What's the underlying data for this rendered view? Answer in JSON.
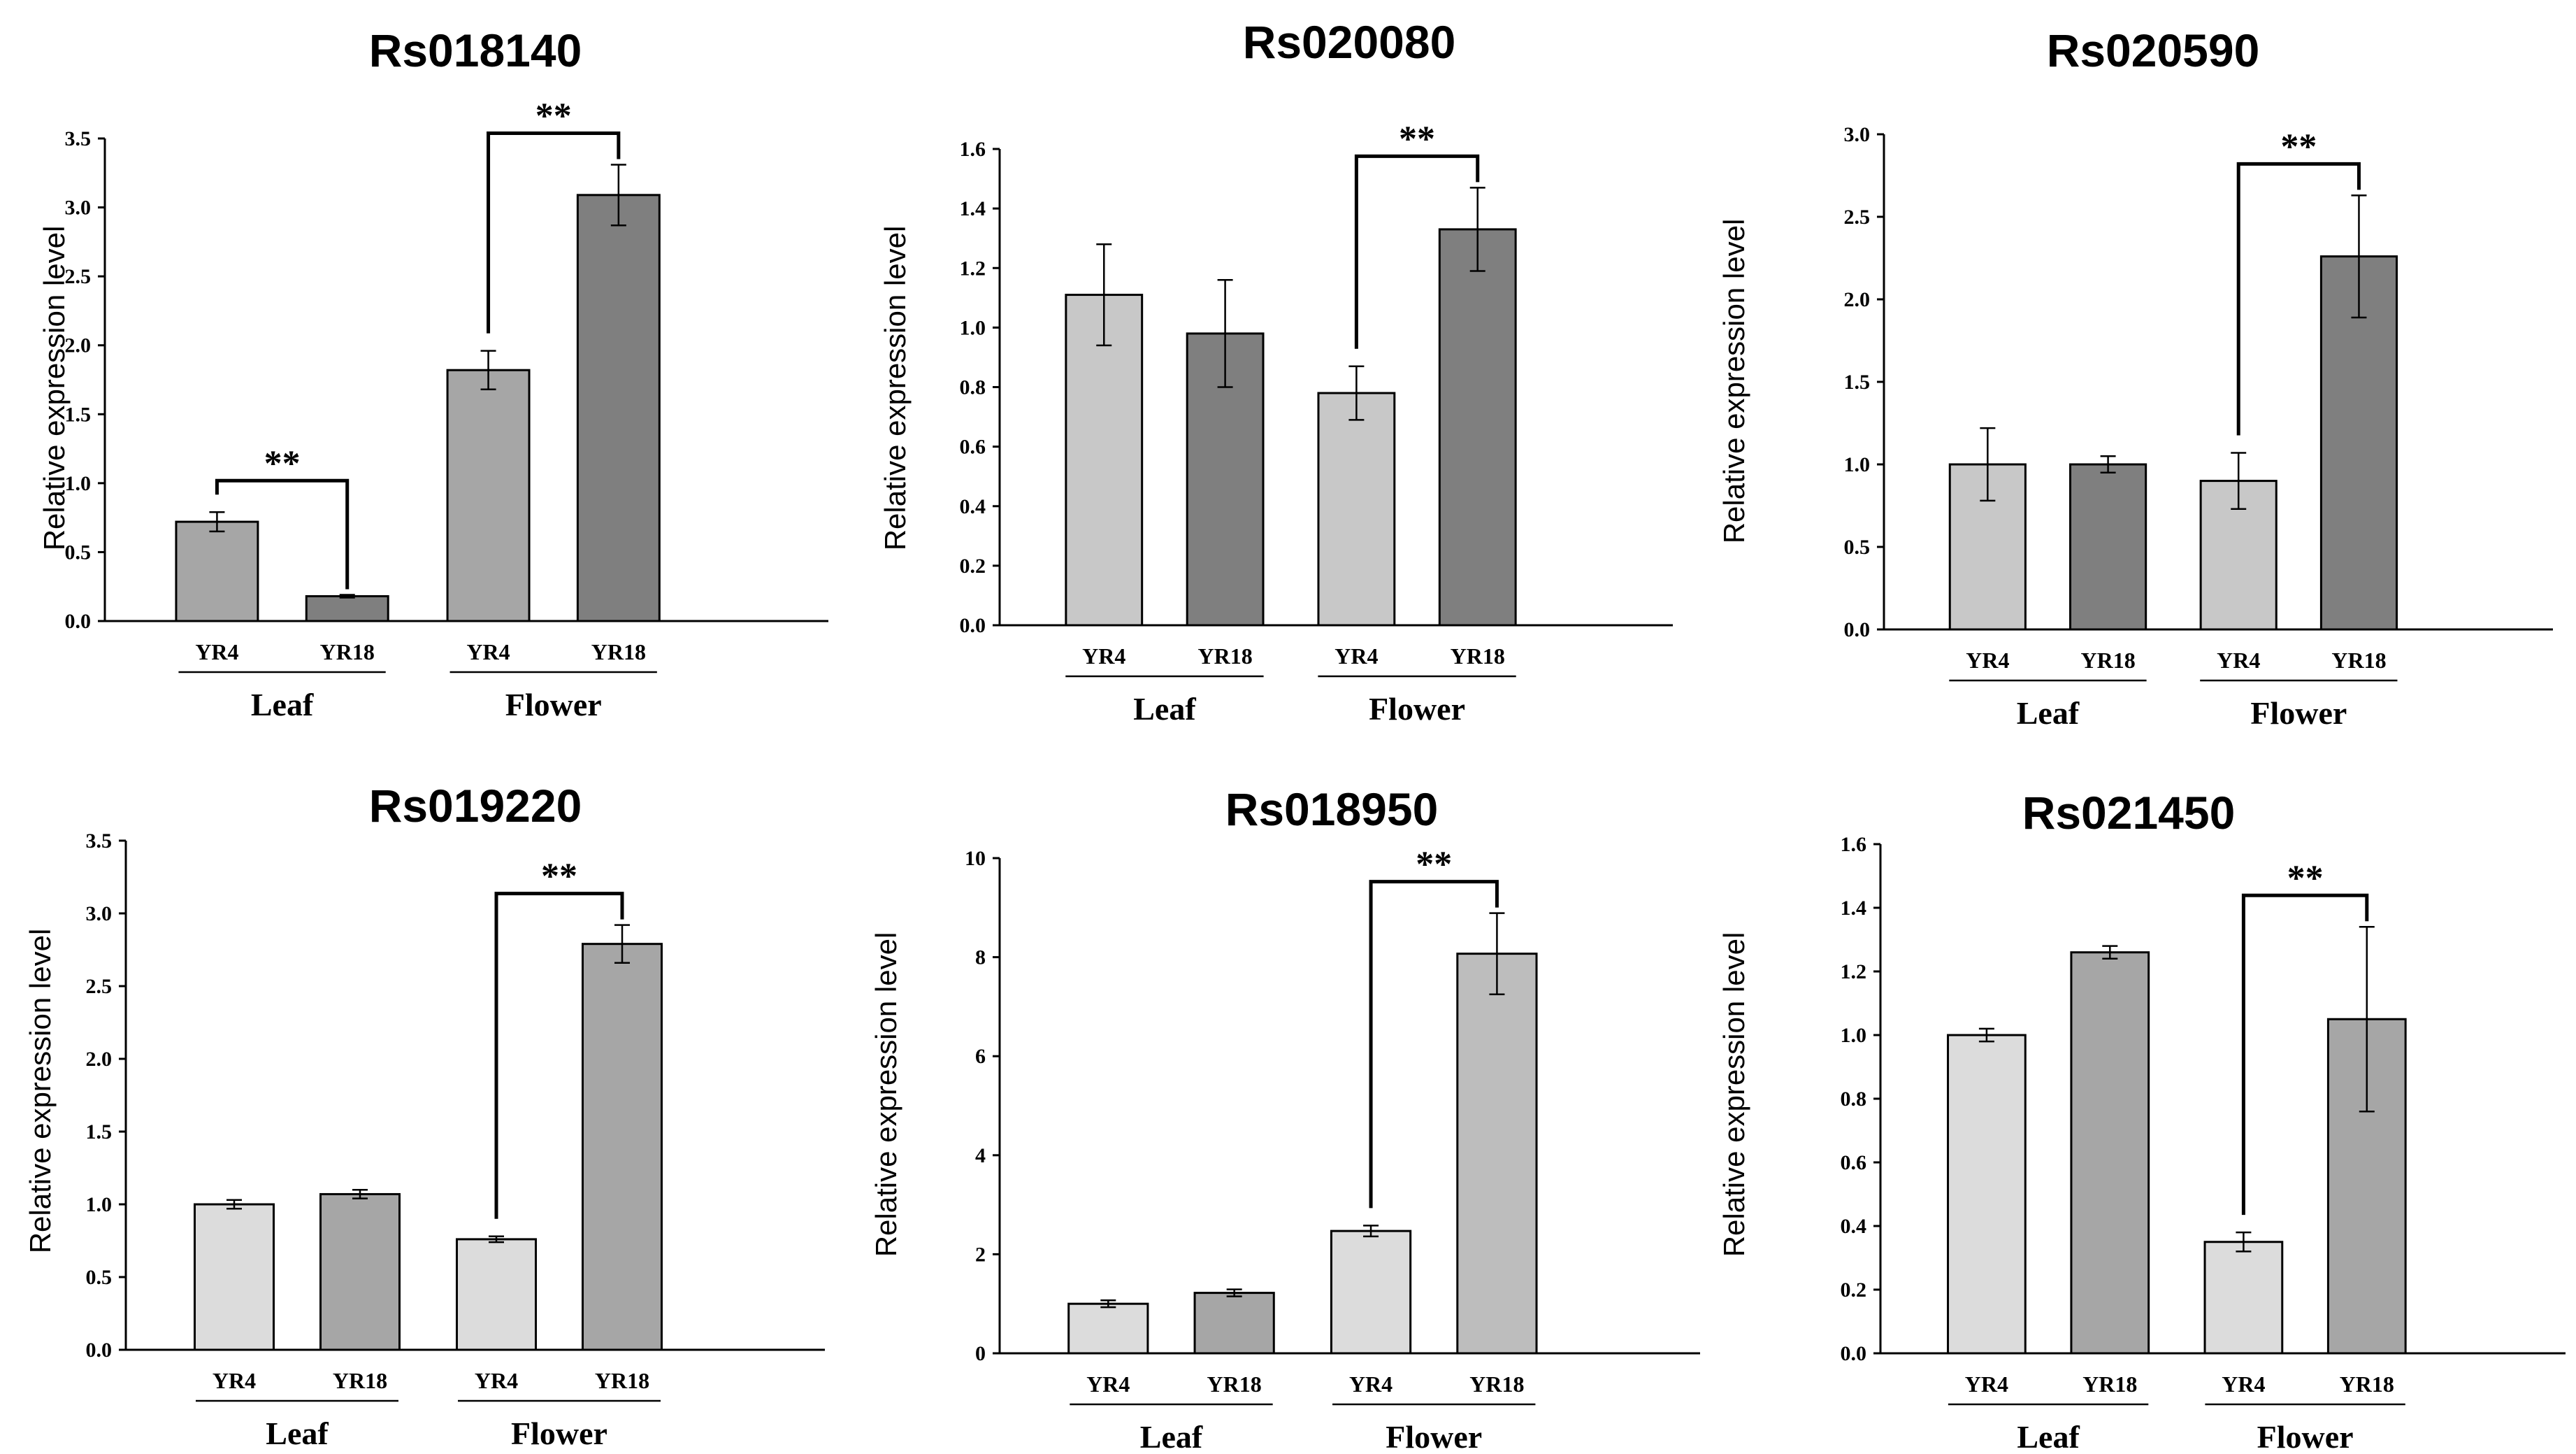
{
  "figure": {
    "description_colors": {
      "light": "#c8c8c8",
      "medium": "#a6a6a6",
      "dark": "#7f7f7f",
      "outline": "#000000"
    }
  },
  "chart_data": [
    {
      "type": "bar",
      "title": "Rs018140",
      "ylabel": "Relative expression level",
      "xlabel": "",
      "categories": [
        "YR4",
        "YR18",
        "YR4",
        "YR18"
      ],
      "groups": [
        "Leaf",
        "Flower"
      ],
      "values": [
        0.72,
        0.18,
        1.82,
        3.09
      ],
      "errors": [
        0.07,
        0.01,
        0.14,
        0.22
      ],
      "colors": [
        "#a6a6a6",
        "#7f7f7f",
        "#a6a6a6",
        "#7f7f7f"
      ],
      "ylim": [
        0,
        3.5
      ],
      "yticks": [
        "0.0",
        "0.5",
        "1.0",
        "1.5",
        "2.0",
        "2.5",
        "3.0",
        "3.5"
      ],
      "significance": [
        {
          "from": 0,
          "to": 1,
          "label": "**"
        },
        {
          "from": 2,
          "to": 3,
          "label": "**"
        }
      ]
    },
    {
      "type": "bar",
      "title": "Rs020080",
      "ylabel": "Relative expression level",
      "xlabel": "",
      "categories": [
        "YR4",
        "YR18",
        "YR4",
        "YR18"
      ],
      "groups": [
        "Leaf",
        "Flower"
      ],
      "values": [
        1.11,
        0.98,
        0.78,
        1.33
      ],
      "errors": [
        0.17,
        0.18,
        0.09,
        0.14
      ],
      "colors": [
        "#c8c8c8",
        "#7f7f7f",
        "#c8c8c8",
        "#7f7f7f"
      ],
      "ylim": [
        0,
        1.6
      ],
      "yticks": [
        "0.0",
        "0.2",
        "0.4",
        "0.6",
        "0.8",
        "1.0",
        "1.2",
        "1.4",
        "1.6"
      ],
      "significance": [
        {
          "from": 2,
          "to": 3,
          "label": "**"
        }
      ]
    },
    {
      "type": "bar",
      "title": "Rs020590",
      "ylabel": "Relative expression level",
      "xlabel": "",
      "categories": [
        "YR4",
        "YR18",
        "YR4",
        "YR18"
      ],
      "groups": [
        "Leaf",
        "Flower"
      ],
      "values": [
        1.0,
        1.0,
        0.9,
        2.26
      ],
      "errors": [
        0.22,
        0.05,
        0.17,
        0.37
      ],
      "colors": [
        "#c8c8c8",
        "#7f7f7f",
        "#c8c8c8",
        "#7f7f7f"
      ],
      "ylim": [
        0,
        3.0
      ],
      "yticks": [
        "0.0",
        "0.5",
        "1.0",
        "1.5",
        "2.0",
        "2.5",
        "3.0"
      ],
      "significance": [
        {
          "from": 2,
          "to": 3,
          "label": "**"
        }
      ]
    },
    {
      "type": "bar",
      "title": "Rs019220",
      "ylabel": "Relative expression level",
      "xlabel": "",
      "categories": [
        "YR4",
        "YR18",
        "YR4",
        "YR18"
      ],
      "groups": [
        "Leaf",
        "Flower"
      ],
      "values": [
        1.0,
        1.07,
        0.76,
        2.79
      ],
      "errors": [
        0.03,
        0.03,
        0.02,
        0.13
      ],
      "colors": [
        "#dcdcdc",
        "#a6a6a6",
        "#dcdcdc",
        "#a6a6a6"
      ],
      "ylim": [
        0,
        3.5
      ],
      "yticks": [
        "0.0",
        "0.5",
        "1.0",
        "1.5",
        "2.0",
        "2.5",
        "3.0",
        "3.5"
      ],
      "significance": [
        {
          "from": 2,
          "to": 3,
          "label": "**"
        }
      ]
    },
    {
      "type": "bar",
      "title": "Rs018950",
      "ylabel": "Relative expression level",
      "xlabel": "",
      "categories": [
        "YR4",
        "YR18",
        "YR4",
        "YR18"
      ],
      "groups": [
        "Leaf",
        "Flower"
      ],
      "values": [
        1.0,
        1.22,
        2.47,
        8.07
      ],
      "errors": [
        0.07,
        0.07,
        0.11,
        0.82
      ],
      "colors": [
        "#dcdcdc",
        "#a6a6a6",
        "#dcdcdc",
        "#bdbdbd"
      ],
      "ylim": [
        0,
        10
      ],
      "yticks": [
        "0",
        "2",
        "4",
        "6",
        "8",
        "10"
      ],
      "significance": [
        {
          "from": 2,
          "to": 3,
          "label": "**"
        }
      ]
    },
    {
      "type": "bar",
      "title": "Rs021450",
      "ylabel": "Relative expression level",
      "xlabel": "",
      "categories": [
        "YR4",
        "YR18",
        "YR4",
        "YR18"
      ],
      "groups": [
        "Leaf",
        "Flower"
      ],
      "values": [
        1.0,
        1.26,
        0.35,
        1.05
      ],
      "errors": [
        0.02,
        0.02,
        0.03,
        0.29
      ],
      "colors": [
        "#dcdcdc",
        "#a6a6a6",
        "#dcdcdc",
        "#a6a6a6"
      ],
      "ylim": [
        0,
        1.6
      ],
      "yticks": [
        "0.0",
        "0.2",
        "0.4",
        "0.6",
        "0.8",
        "1.0",
        "1.2",
        "1.4",
        "1.6"
      ],
      "significance": [
        {
          "from": 2,
          "to": 3,
          "label": "**"
        }
      ]
    }
  ]
}
